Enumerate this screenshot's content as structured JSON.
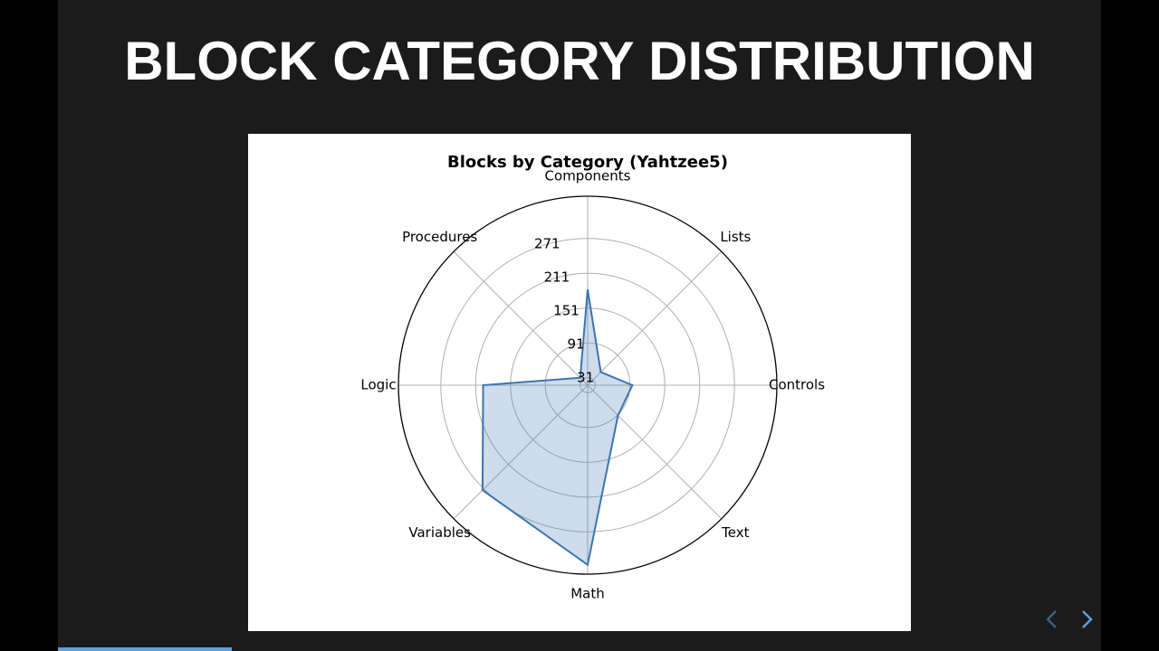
{
  "slide": {
    "title": "BLOCK CATEGORY DISTRIBUTION"
  },
  "chart_data": {
    "type": "radar",
    "title": "Blocks by Category (Yahtzee5)",
    "categories": [
      "Components",
      "Lists",
      "Controls",
      "Text",
      "Math",
      "Variables",
      "Logic",
      "Procedures"
    ],
    "values": [
      183,
      50,
      95,
      92,
      328,
      274,
      198,
      36
    ],
    "color": "#3a75af",
    "ylim": [
      18,
      344
    ],
    "yticks": [
      31,
      91,
      151,
      211,
      271
    ],
    "grid": true
  }
}
